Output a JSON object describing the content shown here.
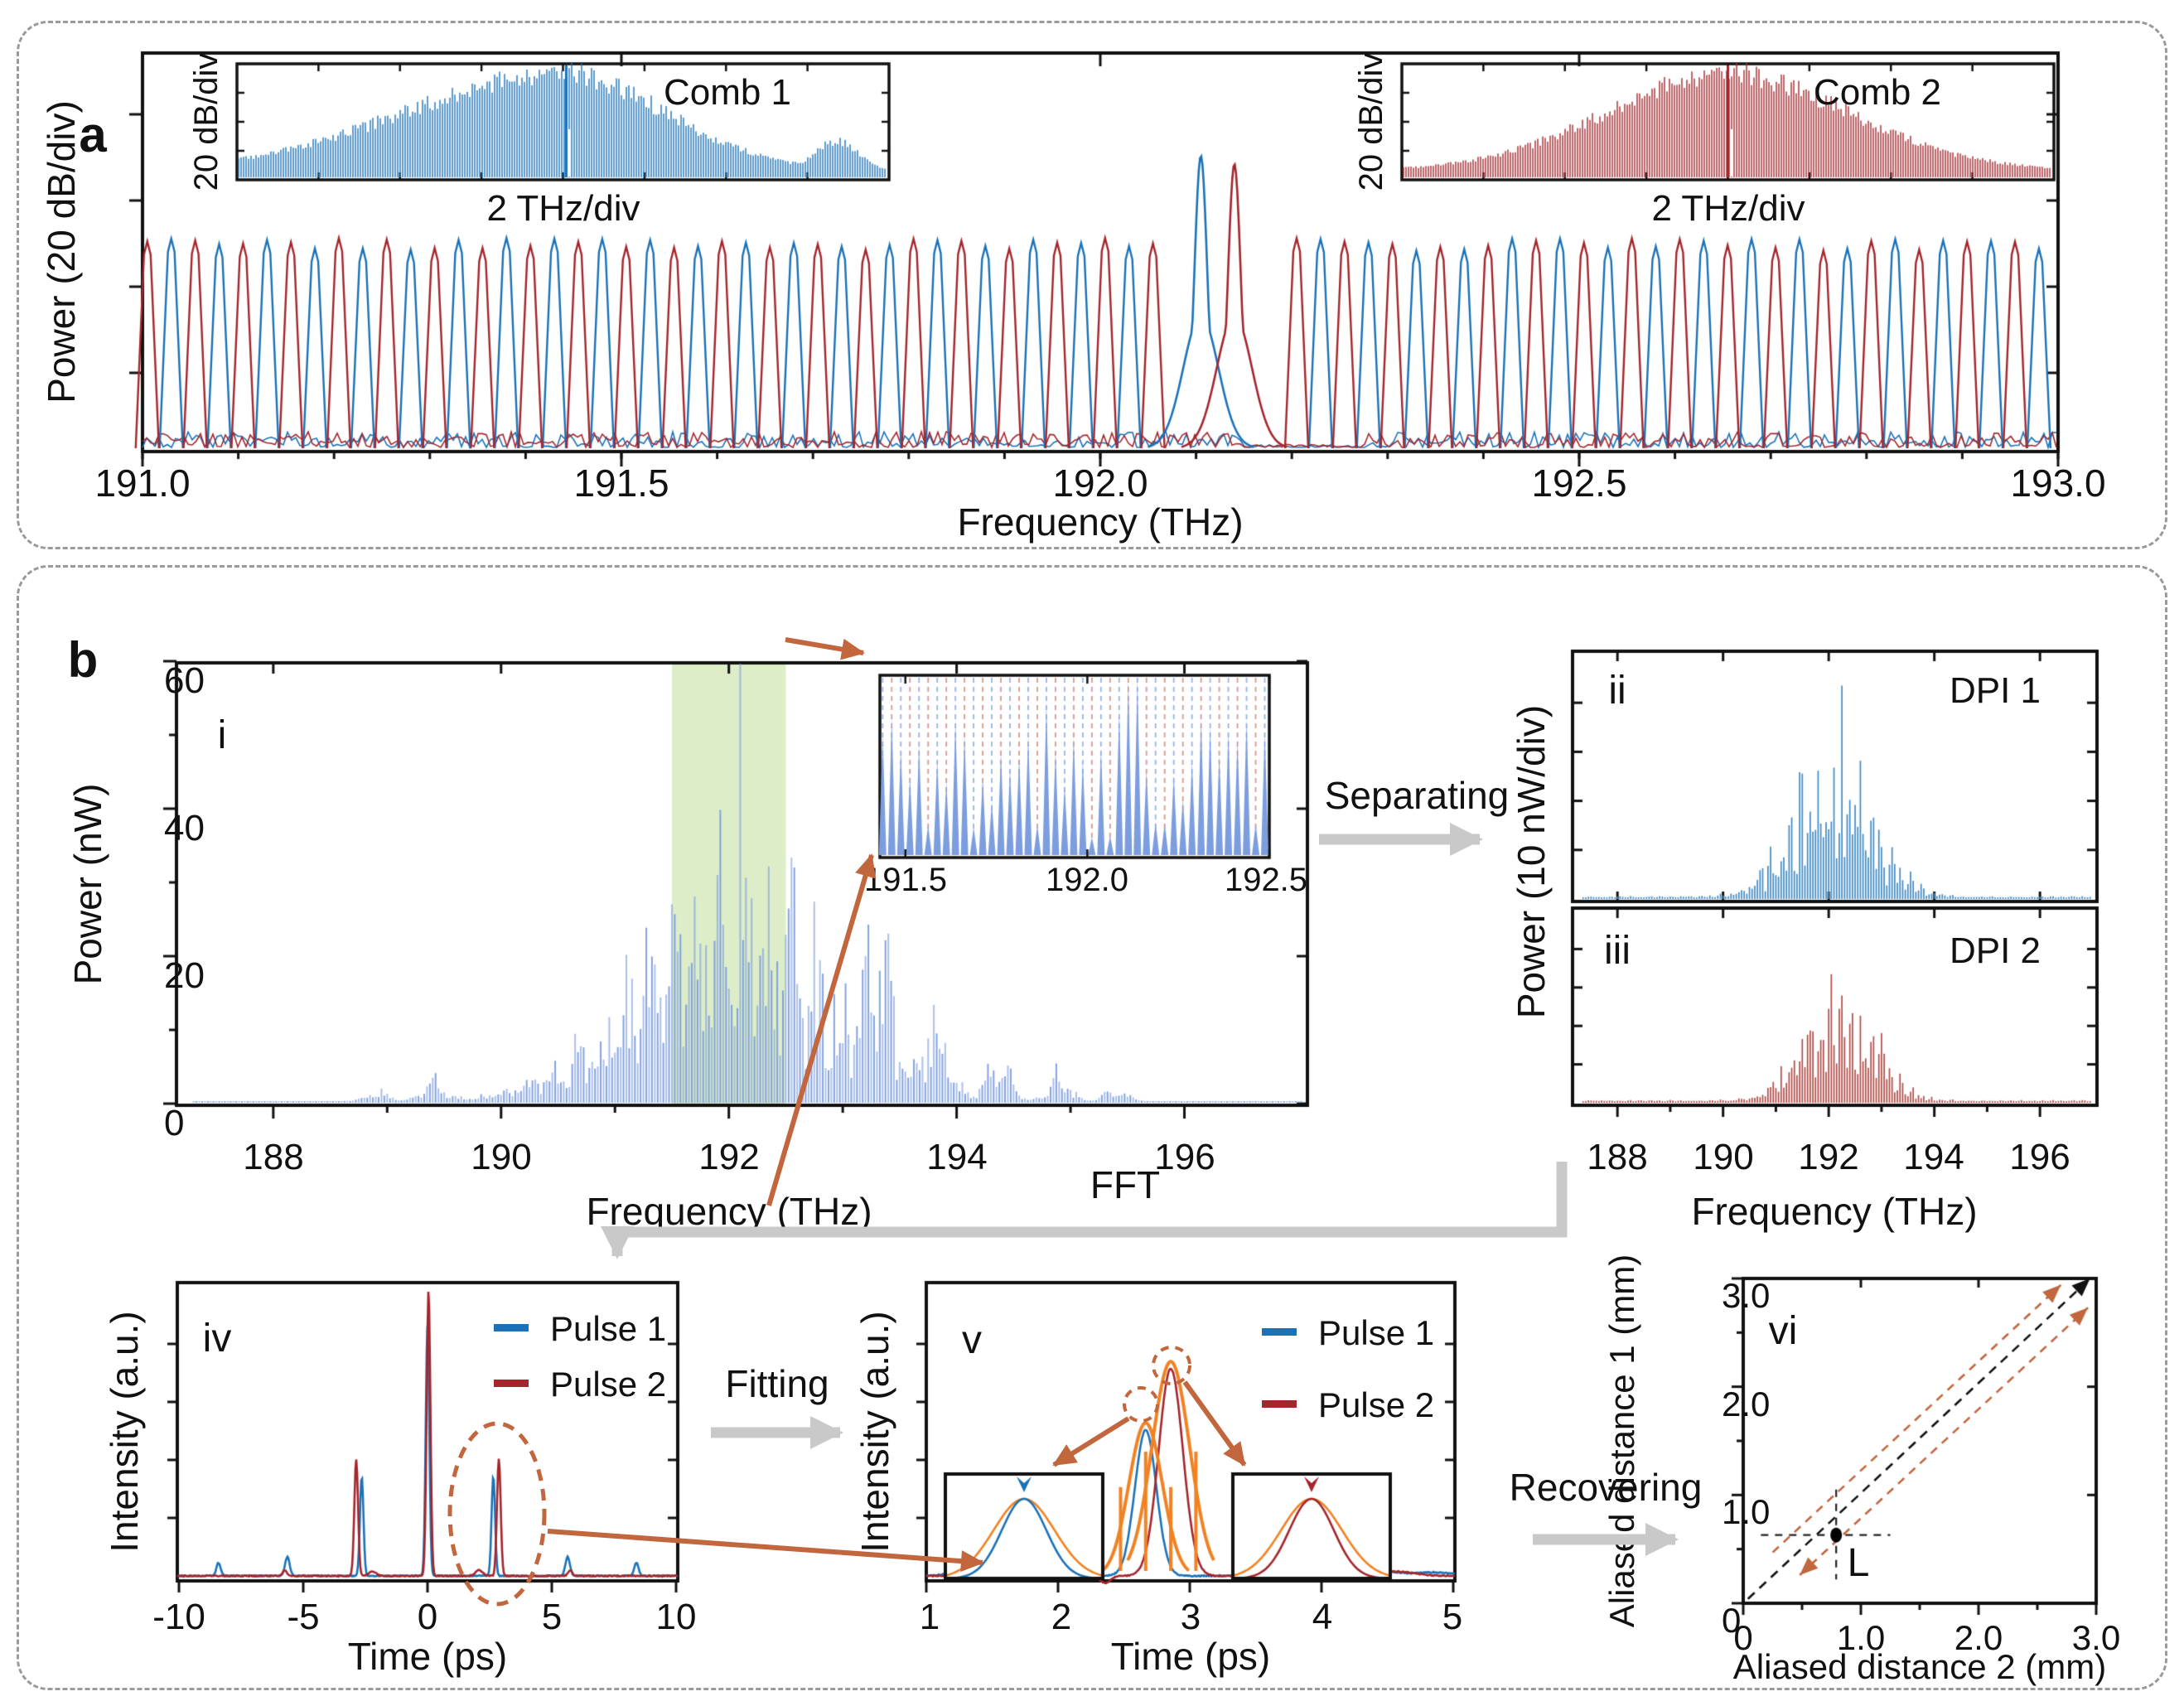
{
  "colors": {
    "blue": "#1b72b8",
    "dark_red": "#a4262c",
    "light_blue": "#7c9dde",
    "dpi1_blue": "#3e8ac5",
    "dpi2_red": "#b14b47",
    "orange_arrow": "#c2663e",
    "orange_fit": "#f08223",
    "green_band": "#dcedc8",
    "gray_arrow": "#c9c9c9",
    "grid_blue_dash": "#98b4e6",
    "grid_red_dash": "#d89a92",
    "frame": "#111111"
  },
  "panel_a": {
    "letter": "a",
    "main": {
      "ylabel": "Power (20 dB/div)",
      "xlabel": "Frequency (THz)",
      "xticks": [
        "191.0",
        "191.5",
        "192.0",
        "192.5",
        "193.0"
      ]
    },
    "inset1": {
      "title": "Comb 1",
      "ylabel": "20 dB/div",
      "xlabel": "2 THz/div"
    },
    "inset2": {
      "title": "Comb 2",
      "ylabel": "20 dB/div",
      "xlabel": "2 THz/div"
    }
  },
  "panel_b": {
    "letter": "b",
    "i": {
      "tag": "i",
      "ylabel": "Power (nW)",
      "xlabel": "Frequency (THz)",
      "yticks": [
        "0",
        "20",
        "40",
        "60"
      ],
      "xticks": [
        "188",
        "190",
        "192",
        "194",
        "196"
      ],
      "inset_xticks": [
        "191.5",
        "192.0",
        "192.5"
      ]
    },
    "ii": {
      "tag": "ii",
      "title": "DPI 1"
    },
    "iii": {
      "tag": "iii",
      "title": "DPI 2",
      "xticks": [
        "188",
        "190",
        "192",
        "194",
        "196"
      ],
      "xlabel": "Frequency (THz)"
    },
    "right_ylabel": "Power (10 nW/div)",
    "steps": {
      "separating": "Separating",
      "fft": "FFT",
      "fitting": "Fitting",
      "recovering": "Recovering"
    },
    "iv": {
      "tag": "iv",
      "ylabel": "Intensity (a.u.)",
      "xlabel": "Time (ps)",
      "xticks": [
        "-10",
        "-5",
        "0",
        "5",
        "10"
      ],
      "legend": [
        "Pulse 1",
        "Pulse 2"
      ]
    },
    "v": {
      "tag": "v",
      "ylabel": "Intensity (a.u.)",
      "xlabel": "Time (ps)",
      "xticks": [
        "1",
        "2",
        "3",
        "4",
        "5"
      ],
      "legend": [
        "Pulse 1",
        "Pulse 2"
      ]
    },
    "vi": {
      "tag": "vi",
      "ylabel": "Aliased distance 1 (mm)",
      "xlabel": "Aliased distance 2 (mm)",
      "xticks": [
        "0",
        "1.0",
        "2.0",
        "3.0"
      ],
      "yticks": [
        "0",
        "1.0",
        "2.0",
        "3.0"
      ],
      "point_label": "L"
    }
  },
  "chart_data": [
    {
      "id": "a_main",
      "type": "line",
      "xlabel": "Frequency (THz)",
      "ylabel": "Power (20 dB/div)",
      "xlim": [
        191.0,
        193.0
      ],
      "xticks": [
        191.0,
        191.5,
        192.0,
        192.5,
        193.0
      ],
      "x_minor_step": 0.1,
      "series": [
        {
          "name": "Comb 1",
          "color": "#1b72b8",
          "first_line_thz": 191.03,
          "line_spacing_thz": 0.05,
          "pump_thz": 192.105
        },
        {
          "name": "Comb 2",
          "color": "#a4262c",
          "first_line_thz": 191.005,
          "line_spacing_thz": 0.05,
          "pump_thz": 192.14
        }
      ]
    },
    {
      "id": "a_inset_comb1",
      "type": "area",
      "label": "Comb 1",
      "color": "#1b72b8",
      "xdiv": "2 THz/div",
      "ydiv": "20 dB/div",
      "envelope": {
        "center": 0.5,
        "sigma_left": 0.34,
        "sigma_right": 0.22,
        "bump_pos": 0.92,
        "bump_amp": 0.3,
        "bump_sigma": 0.045
      },
      "pump_pos": 0.505
    },
    {
      "id": "a_inset_comb2",
      "type": "area",
      "label": "Comb 2",
      "color": "#a4262c",
      "xdiv": "2 THz/div",
      "ydiv": "20 dB/div",
      "envelope": {
        "center": 0.5,
        "sigma_left": 0.26,
        "sigma_right": 0.26
      },
      "pump_pos": 0.5
    },
    {
      "id": "b_i",
      "type": "bar",
      "xlabel": "Frequency (THz)",
      "ylabel": "Power (nW)",
      "xlim": [
        187.15,
        197.08
      ],
      "ylim": [
        0,
        60
      ],
      "xticks": [
        188,
        190,
        192,
        194,
        196
      ],
      "yticks": [
        0,
        20,
        40,
        60
      ],
      "line_spacing_thz": 0.025,
      "envelope": {
        "center": 192.02,
        "sigma": 1.15,
        "peak_nw": 44
      },
      "side_lobes": [
        [
          193.32,
          24
        ],
        [
          193.82,
          17
        ],
        [
          194.38,
          10
        ],
        [
          194.9,
          5.5
        ],
        [
          195.4,
          3
        ],
        [
          189.4,
          4
        ],
        [
          188.9,
          2.5
        ]
      ],
      "tall_line_thz": 192.1,
      "highlight_thz": [
        191.5,
        192.5
      ],
      "inset": {
        "xlim": [
          191.43,
          192.5
        ],
        "xticks": [
          191.5,
          192.0,
          192.5
        ],
        "grid_spacing_thz": 0.025,
        "tall_lines_thz": [
          192.1125,
          192.1375
        ]
      }
    },
    {
      "id": "b_ii",
      "type": "bar",
      "label": "DPI 1",
      "color": "#3e8ac5",
      "ydiv": "10 nW/div",
      "xlim": [
        187.15,
        197.08
      ],
      "line_spacing_thz": 0.05,
      "envelope": {
        "center": 192.08,
        "sigma": 1.0
      }
    },
    {
      "id": "b_iii",
      "type": "bar",
      "label": "DPI 2",
      "color": "#b14b47",
      "ydiv": "10 nW/div",
      "xlim": [
        187.15,
        197.08
      ],
      "line_spacing_thz": 0.05,
      "envelope": {
        "center": 192.18,
        "sigma": 0.9
      },
      "xticks": [
        188,
        190,
        192,
        194,
        196
      ]
    },
    {
      "id": "b_iv",
      "type": "line",
      "xlabel": "Time (ps)",
      "ylabel": "Intensity (a.u.)",
      "xlim": [
        -10,
        10
      ],
      "xticks": [
        -10,
        -5,
        0,
        5,
        10
      ],
      "series": [
        {
          "name": "Pulse 1",
          "color": "#1b72b8",
          "peaks": [
            [
              0,
              0.855,
              0.1
            ],
            [
              -2.63,
              0.34,
              0.1
            ],
            [
              2.63,
              0.34,
              0.1
            ],
            [
              -5.6,
              0.065,
              0.13
            ],
            [
              5.6,
              0.065,
              0.13
            ],
            [
              -8.35,
              0.045,
              0.12
            ],
            [
              8.35,
              0.045,
              0.12
            ]
          ]
        },
        {
          "name": "Pulse 2",
          "color": "#a4262c",
          "peaks": [
            [
              0.04,
              0.98,
              0.105
            ],
            [
              -2.85,
              0.4,
              0.105
            ],
            [
              2.85,
              0.4,
              0.105
            ],
            [
              -5.7,
              0.02,
              0.12
            ],
            [
              5.7,
              0.02,
              0.12
            ],
            [
              2.05,
              0.02,
              0.2
            ],
            [
              -2.2,
              0.015,
              0.2
            ]
          ]
        }
      ],
      "ellipse_center_ps": 2.8
    },
    {
      "id": "b_v",
      "type": "line",
      "xlabel": "Time (ps)",
      "ylabel": "Intensity (a.u.)",
      "xlim": [
        1,
        5
      ],
      "xticks": [
        1,
        2,
        3,
        4,
        5
      ],
      "series": [
        {
          "name": "Pulse 1",
          "color": "#1b72b8",
          "peaks": [
            [
              2.66,
              0.5,
              0.115
            ],
            [
              1.35,
              0.02,
              0.2
            ],
            [
              4.35,
              0.022,
              0.25
            ],
            [
              4.85,
              0.012,
              0.2
            ]
          ]
        },
        {
          "name": "Pulse 2",
          "color": "#a4262c",
          "peaks": [
            [
              2.85,
              0.71,
              0.13
            ],
            [
              2.1,
              0.035,
              0.13
            ],
            [
              1.6,
              0.02,
              0.18
            ],
            [
              2.35,
              -0.025,
              0.06
            ],
            [
              3.95,
              0.02,
              0.25
            ],
            [
              4.55,
              0.015,
              0.2
            ]
          ]
        }
      ],
      "fit": {
        "sigma_scale": 1.55,
        "window_ps": 0.33,
        "extra_height": 0.025
      }
    },
    {
      "id": "b_vi",
      "type": "scatter",
      "xlabel": "Aliased distance 2 (mm)",
      "ylabel": "Aliased distance 1 (mm)",
      "xlim": [
        0,
        3
      ],
      "ylim": [
        0,
        3
      ],
      "xticks": [
        0,
        1,
        2,
        3
      ],
      "yticks": [
        0,
        1,
        2,
        3
      ],
      "point": {
        "x": 0.79,
        "y": 0.63,
        "label": "L"
      },
      "identity_line": {
        "from": [
          0.04,
          0.04
        ],
        "to": [
          2.92,
          2.97
        ]
      },
      "offset_lines": [
        {
          "from": [
            0.25,
            0.47
          ],
          "to": [
            2.7,
            2.94
          ],
          "heads": [
            "end"
          ]
        },
        {
          "from": [
            0.48,
            0.26
          ],
          "to": [
            2.93,
            2.73
          ],
          "heads": [
            "start",
            "end"
          ]
        }
      ]
    }
  ]
}
